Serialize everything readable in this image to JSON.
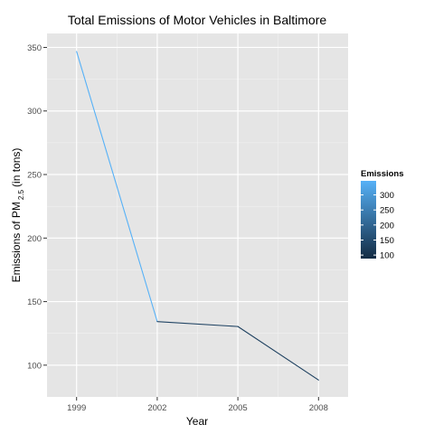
{
  "chart_data": {
    "type": "line",
    "title": "Total Emissions of Motor Vehicles in Baltimore",
    "xlabel": "Year",
    "ylabel_main": "Emissions of PM",
    "ylabel_sub": "2.5",
    "ylabel_tail": "(in tons)",
    "x": [
      1999,
      2002,
      2005,
      2008
    ],
    "xticks": [
      "1999",
      "2002",
      "2005",
      "2008"
    ],
    "xlim": [
      1997.9,
      2009.1
    ],
    "values": [
      346.8,
      134.3,
      130.4,
      88.3
    ],
    "yticks": [
      100,
      150,
      200,
      250,
      300,
      350
    ],
    "ylim": [
      75,
      361
    ],
    "grid": true,
    "legend": {
      "title": "Emissions",
      "placement": "right",
      "labels": [
        "300",
        "250",
        "200",
        "150",
        "100"
      ],
      "label_values": [
        300,
        250,
        200,
        150,
        100
      ],
      "range": [
        88.3,
        346.8
      ],
      "color_low": "#132B43",
      "color_high": "#56B1F7"
    },
    "colors": {
      "panel": "#E5E5E5",
      "grid_major": "#FFFFFF",
      "grid_minor": "#F2F2F2"
    }
  }
}
